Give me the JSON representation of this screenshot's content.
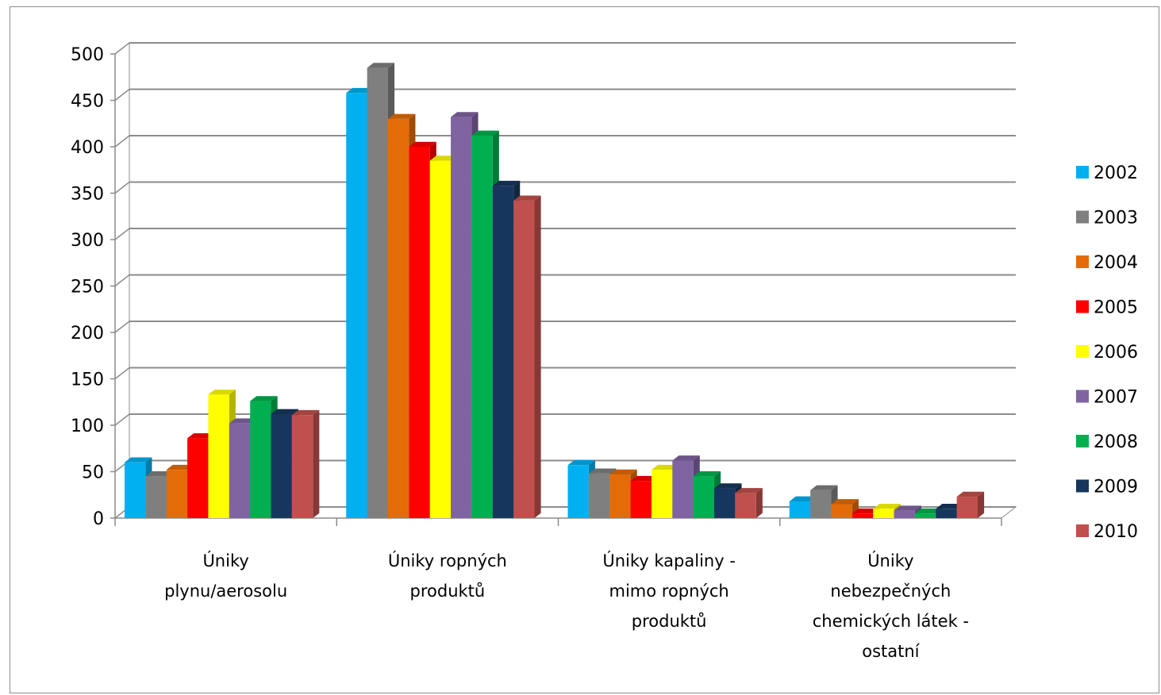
{
  "chart_data": {
    "type": "bar",
    "title": "",
    "xlabel": "",
    "ylabel": "",
    "ylim": [
      0,
      500
    ],
    "yticks": [
      0,
      50,
      100,
      150,
      200,
      250,
      300,
      350,
      400,
      450,
      500
    ],
    "grid": true,
    "legend_position": "right",
    "categories": [
      [
        "Úniky",
        "plynu/aerosolu"
      ],
      [
        "Úniky ropných",
        "produktů"
      ],
      [
        "Úniky kapaliny -",
        "mimo ropných",
        "produktů"
      ],
      [
        "Úniky",
        "nebezpečných",
        "chemických látek -",
        "ostatní"
      ]
    ],
    "series": [
      {
        "name": "2002",
        "color": "#00b0f0",
        "values": [
          60,
          458,
          57,
          18
        ]
      },
      {
        "name": "2003",
        "color": "#7f7f7f",
        "values": [
          45,
          485,
          48,
          30
        ]
      },
      {
        "name": "2004",
        "color": "#e36c09",
        "values": [
          52,
          430,
          47,
          15
        ]
      },
      {
        "name": "2005",
        "color": "#ff0000",
        "values": [
          86,
          400,
          40,
          5
        ]
      },
      {
        "name": "2006",
        "color": "#ffff00",
        "values": [
          133,
          385,
          52,
          10
        ]
      },
      {
        "name": "2007",
        "color": "#8064a2",
        "values": [
          102,
          432,
          62,
          8
        ]
      },
      {
        "name": "2008",
        "color": "#00b050",
        "values": [
          126,
          412,
          45,
          5
        ]
      },
      {
        "name": "2009",
        "color": "#17365d",
        "values": [
          112,
          358,
          32,
          10
        ]
      },
      {
        "name": "2010",
        "color": "#c0504d",
        "values": [
          111,
          342,
          27,
          23
        ]
      }
    ]
  }
}
